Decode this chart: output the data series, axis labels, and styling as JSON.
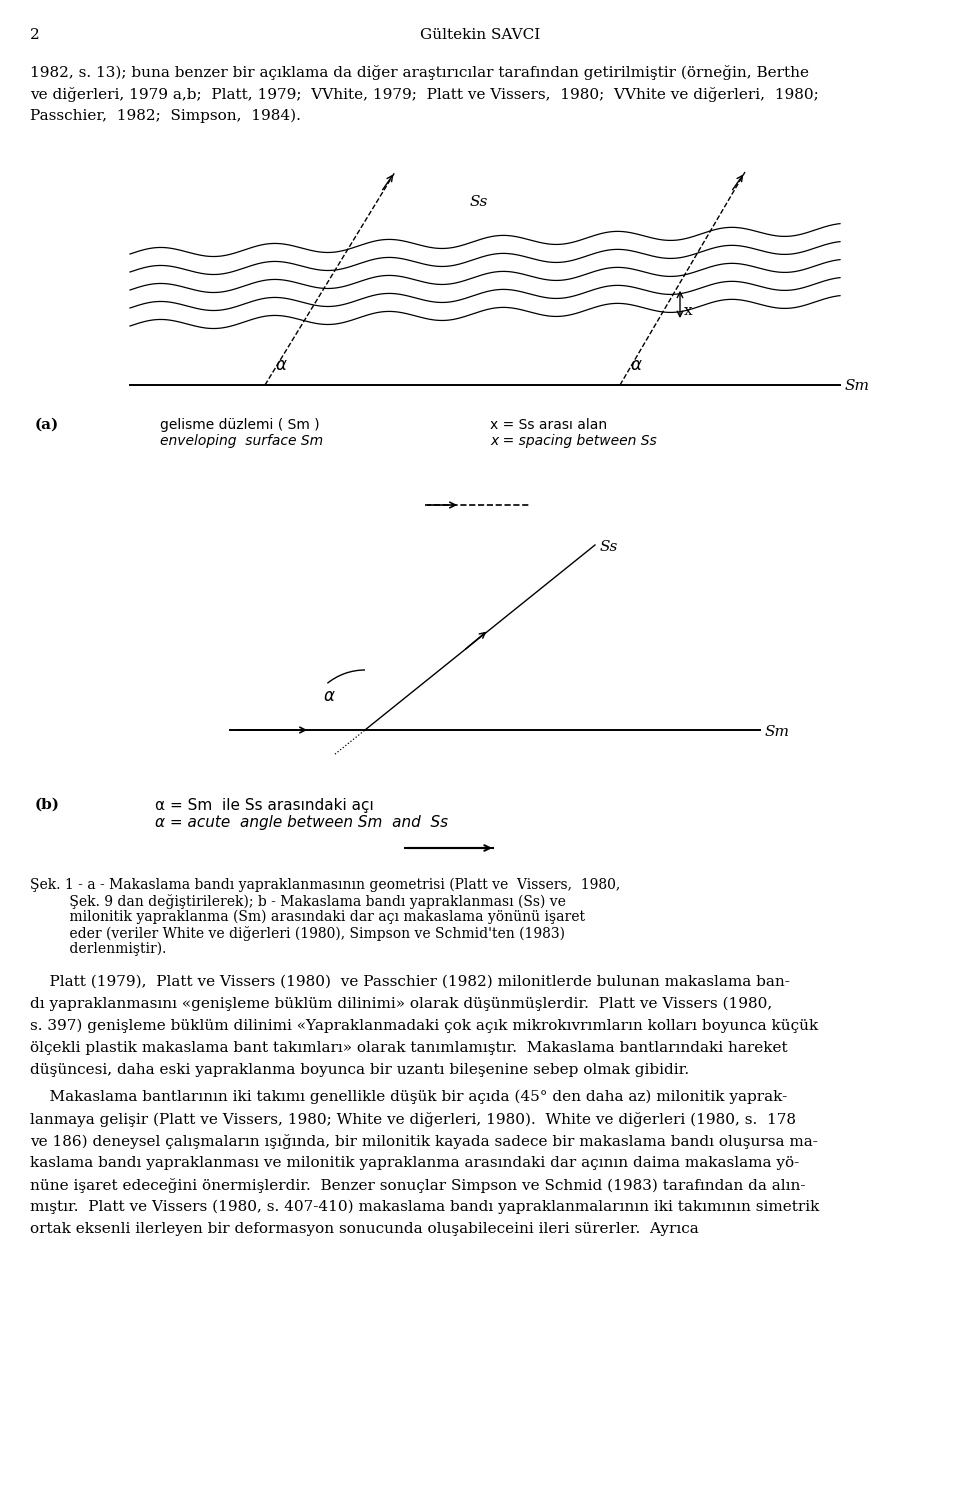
{
  "bg_color": "#ffffff",
  "page_number": "2",
  "header": "Gültekin SAVCI",
  "para1_line1": "1982, s. 13); buna benzer bir açıklama da diğer araştırıcılar tarafından getirilmiştir (örneğin, Berthe",
  "para1_line2": "ve diğerleri, 1979 a,b;  Platt, 1979;  VVhite, 1979;  Platt ve Vissers,  1980;  VVhite ve diğerleri,  1980;",
  "para1_line3": "Passchier,  1982;  Simpson,  1984).",
  "label_a": "(a)",
  "caption_a_line1": "gelisme düzlemi ( Sm )",
  "caption_a_line2": "enveloping  surface Sm",
  "caption_a_line3": "x = Ss arası alan",
  "caption_a_line4": "x = spacing between Ss",
  "label_b": "(b)",
  "caption_b_line1": "α = Sm  ile Ss arasındaki açı",
  "caption_b_line2": "α = acute  angle between Sm  and  Ss",
  "fig_caption_line1": "Şek. 1 - a - Makaslama bandı yapraklanmasının geometrisi (Platt ve  Vissers,  1980,",
  "fig_caption_line2": "         Şek. 9 dan değiştirilerek); b - Makaslama bandı yapraklanması (Ss) ve",
  "fig_caption_line3": "         milonitik yapraklanma (Sm) arasındaki dar açı makaslama yönünü işaret",
  "fig_caption_line4": "         eder (veriler White ve diğerleri (1980), Simpson ve Schmid'ten (1983)",
  "fig_caption_line5": "         derlenmiştir).",
  "para2_line1": "    Platt (1979),  Platt ve Vissers (1980)  ve Passchier (1982) milonitlerde bulunan makaslama ban-",
  "para2_line2": "dı yapraklanmasını «genişleme büklüm dilinimi» olarak düşünmüşlerdir.  Platt ve Vissers (1980,",
  "para2_line3": "s. 397) genişleme büklüm dilinimi «Yapraklanmadaki çok açık mikrokıvrımların kolları boyunca küçük",
  "para2_line4": "ölçekli plastik makaslama bant takımları» olarak tanımlamıştır.  Makaslama bantlarındaki hareket",
  "para2_line5": "düşüncesi, daha eski yapraklanma boyunca bir uzantı bileşenine sebep olmak gibidir.",
  "para3_line1": "    Makaslama bantlarının iki takımı genellikle düşük bir açıda (45° den daha az) milonitik yaprak-",
  "para3_line2": "lanmaya gelişir (Platt ve Vissers, 1980; White ve diğerleri, 1980).  White ve diğerleri (1980, s.  178",
  "para3_line3": "ve 186) deneysel çalışmaların ışığında, bir milonitik kayada sadece bir makaslama bandı oluşursa ma-",
  "para3_line4": "kaslama bandı yapraklanması ve milonitik yapraklanma arasındaki dar açının daima makaslama yö-",
  "para3_line5": "nüne işaret edeceğini önermişlerdir.  Benzer sonuçlar Simpson ve Schmid (1983) tarafından da alın-",
  "para3_line6": "mıştır.  Platt ve Vissers (1980, s. 407-410) makaslama bandı yapraklanmalarının iki takımının simetrik",
  "para3_line7": "ortak eksenli ilerleyen bir deformasyon sonucunda oluşabileceini ileri sürerler.  Ayrıca"
}
